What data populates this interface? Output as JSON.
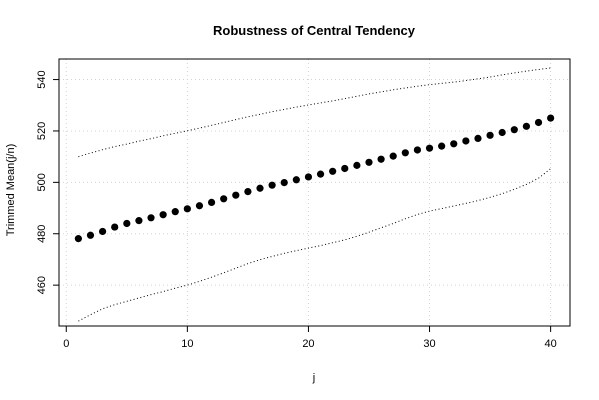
{
  "chart_data": {
    "type": "scatter",
    "title": "Robustness of Central Tendency",
    "xlabel": "j",
    "ylabel": "Trimmed Mean(j/n)",
    "xlim": [
      -0.6,
      41.6
    ],
    "ylim": [
      444.1,
      548.0
    ],
    "xticks": [
      0,
      10,
      20,
      30,
      40
    ],
    "yticks": [
      460,
      480,
      500,
      520,
      540
    ],
    "grid": true,
    "series": [
      {
        "style": "points",
        "x": [
          1,
          2,
          3,
          4,
          5,
          6,
          7,
          8,
          9,
          10,
          11,
          12,
          13,
          14,
          15,
          16,
          17,
          18,
          19,
          20,
          21,
          22,
          23,
          24,
          25,
          26,
          27,
          28,
          29,
          30,
          31,
          32,
          33,
          34,
          35,
          36,
          37,
          38,
          39,
          40
        ],
        "y": [
          478.1,
          479.4,
          480.9,
          482.6,
          484.0,
          485.1,
          486.2,
          487.4,
          488.6,
          489.7,
          490.9,
          492.2,
          493.6,
          495.0,
          496.4,
          497.7,
          498.9,
          499.9,
          501.0,
          502.1,
          503.2,
          504.3,
          505.4,
          506.6,
          507.8,
          509.0,
          510.2,
          511.5,
          512.6,
          513.3,
          514.1,
          515.0,
          516.1,
          517.1,
          518.3,
          519.4,
          520.5,
          521.8,
          523.3,
          525.0
        ]
      },
      {
        "style": "dotted-line",
        "x": [
          1,
          2,
          3,
          4,
          5,
          6,
          7,
          8,
          9,
          10,
          11,
          12,
          13,
          14,
          15,
          16,
          17,
          18,
          19,
          20,
          21,
          22,
          23,
          24,
          25,
          26,
          27,
          28,
          29,
          30,
          31,
          32,
          33,
          34,
          35,
          36,
          37,
          38,
          39,
          40
        ],
        "y": [
          510.0,
          511.4,
          512.7,
          513.9,
          514.9,
          516.0,
          517.0,
          518.1,
          519.1,
          520.1,
          521.1,
          522.2,
          523.3,
          524.4,
          525.5,
          526.5,
          527.5,
          528.4,
          529.3,
          530.1,
          530.9,
          531.7,
          532.6,
          533.5,
          534.4,
          535.2,
          536.0,
          536.7,
          537.4,
          538.0,
          538.5,
          539.0,
          539.6,
          540.3,
          541.0,
          541.8,
          542.6,
          543.3,
          543.9,
          544.5
        ]
      },
      {
        "style": "dotted-line",
        "x": [
          1,
          2,
          3,
          4,
          5,
          6,
          7,
          8,
          9,
          10,
          11,
          12,
          13,
          14,
          15,
          16,
          17,
          18,
          19,
          20,
          21,
          22,
          23,
          24,
          25,
          26,
          27,
          28,
          29,
          30,
          31,
          32,
          33,
          34,
          35,
          36,
          37,
          38,
          39,
          40
        ],
        "y": [
          446.0,
          448.5,
          450.8,
          452.4,
          453.7,
          455.0,
          456.3,
          457.5,
          458.8,
          460.0,
          461.5,
          463.1,
          464.8,
          466.6,
          468.4,
          469.9,
          471.2,
          472.4,
          473.4,
          474.4,
          475.4,
          476.5,
          477.6,
          479.0,
          480.6,
          482.3,
          484.0,
          485.8,
          487.5,
          488.8,
          489.8,
          490.8,
          491.8,
          492.9,
          494.2,
          495.6,
          497.3,
          499.2,
          501.6,
          505.3
        ]
      }
    ]
  }
}
